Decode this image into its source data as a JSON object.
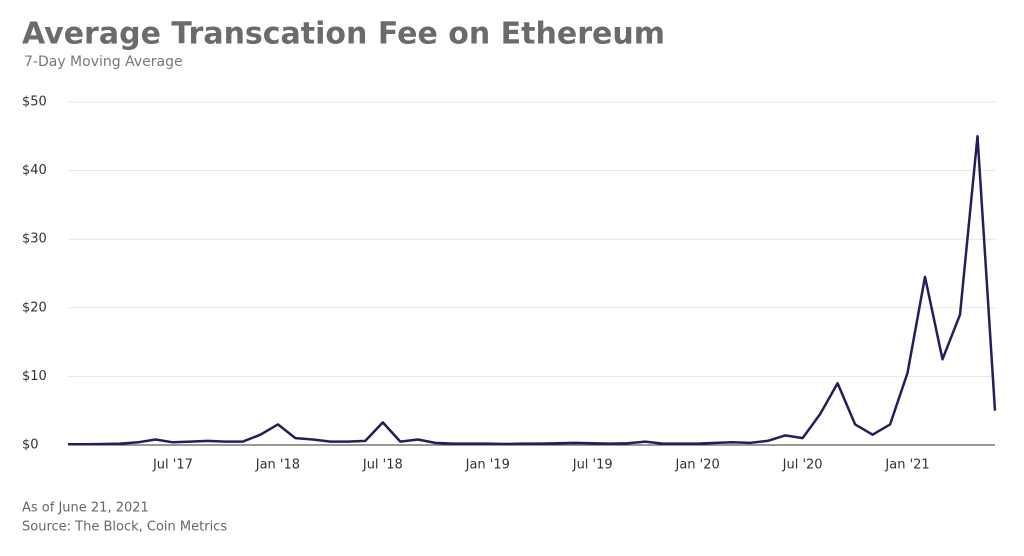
{
  "chart_data": {
    "type": "line",
    "title": "Average Transcation Fee on Ethereum",
    "subtitle": "7-Day Moving Average",
    "notes": [
      "As of June 21, 2021",
      "Source: The Block, Coin Metrics"
    ],
    "categories": [
      null,
      null,
      null,
      null,
      null,
      null,
      "Jul '17",
      null,
      null,
      null,
      null,
      null,
      "Jan '18",
      null,
      null,
      null,
      null,
      null,
      "Jul '18",
      null,
      null,
      null,
      null,
      null,
      "Jan '19",
      null,
      null,
      null,
      null,
      null,
      "Jul '19",
      null,
      null,
      null,
      null,
      null,
      "Jan '20",
      null,
      null,
      null,
      null,
      null,
      "Jul '20",
      null,
      null,
      null,
      null,
      null,
      "Jan '21",
      null,
      null,
      null,
      null,
      null
    ],
    "series": [
      {
        "name": "Average Transaction Fee",
        "color": "#231f5c",
        "values": [
          0.1,
          0.1,
          0.15,
          0.2,
          0.4,
          0.8,
          0.4,
          0.5,
          0.6,
          0.5,
          0.5,
          1.5,
          3.0,
          1.0,
          0.8,
          0.5,
          0.5,
          0.6,
          3.3,
          0.5,
          0.8,
          0.3,
          0.2,
          0.2,
          0.2,
          0.15,
          0.2,
          0.2,
          0.25,
          0.3,
          0.25,
          0.2,
          0.25,
          0.5,
          0.2,
          0.2,
          0.2,
          0.3,
          0.4,
          0.3,
          0.6,
          1.4,
          1.0,
          4.5,
          9.0,
          3.0,
          1.5,
          3.0,
          10.5,
          24.5,
          12.5,
          19,
          45,
          5
        ]
      }
    ],
    "ylim": [
      0,
      50
    ],
    "yticks": [
      {
        "value": 0,
        "label": "$0"
      },
      {
        "value": 10,
        "label": "$10"
      },
      {
        "value": 20,
        "label": "$20"
      },
      {
        "value": 30,
        "label": "$30"
      },
      {
        "value": 40,
        "label": "$40"
      },
      {
        "value": 50,
        "label": "$50"
      }
    ],
    "grid": true
  }
}
